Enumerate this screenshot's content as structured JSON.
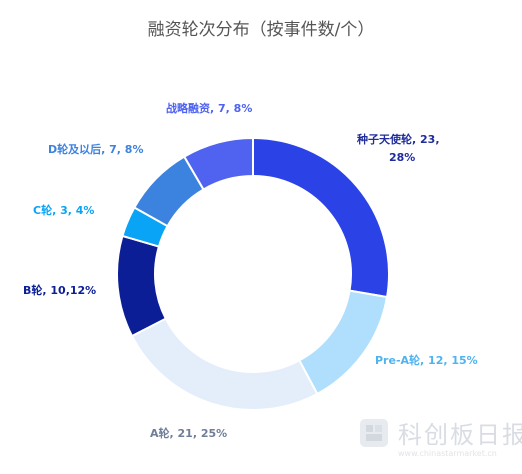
{
  "chart_data": {
    "type": "pie",
    "title": "融资轮次分布（按事件数/个）",
    "series": [
      {
        "name": "种子天使轮",
        "label_lines": [
          "种子天使轮, 23,",
          "28%"
        ],
        "value": 23,
        "percent": 28,
        "color": "#2B43E6",
        "label_color": "#1F2C9C"
      },
      {
        "name": "Pre-A轮",
        "label_lines": [
          "Pre-A轮, 12, 15%"
        ],
        "value": 12,
        "percent": 15,
        "color": "#AFDFFC",
        "label_color": "#4FB3F0"
      },
      {
        "name": "A轮",
        "label_lines": [
          "A轮, 21, 25%"
        ],
        "value": 21,
        "percent": 25,
        "color": "#E4EDFA",
        "label_color": "#6F7E99"
      },
      {
        "name": "B轮",
        "label_lines": [
          "B轮, 10,12%"
        ],
        "value": 10,
        "percent": 12,
        "color": "#0C1E96",
        "label_color": "#0C1E96"
      },
      {
        "name": "C轮",
        "label_lines": [
          "C轮, 3, 4%"
        ],
        "value": 3,
        "percent": 4,
        "color": "#0AA4F7",
        "label_color": "#0AA4F7"
      },
      {
        "name": "D轮及以后",
        "label_lines": [
          "D轮及以后, 7, 8%"
        ],
        "value": 7,
        "percent": 8,
        "color": "#3C82DF",
        "label_color": "#3C82DF"
      },
      {
        "name": "战略融资",
        "label_lines": [
          "战略融资, 7, 8%"
        ],
        "value": 7,
        "percent": 8,
        "color": "#4F63F0",
        "label_color": "#4F63F0"
      }
    ]
  },
  "watermark": {
    "text": "科创板日报",
    "subtext": "www.chinastarmarket.cn"
  }
}
